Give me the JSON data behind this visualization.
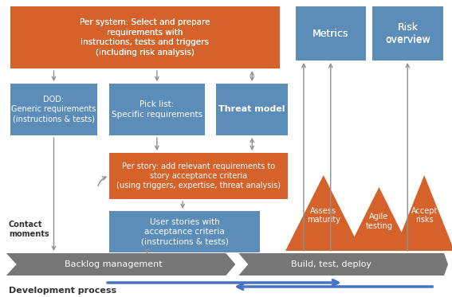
{
  "orange": "#D4622A",
  "blue_dark": "#5B8DB8",
  "blue_light": "#6FA8DC",
  "gray": "#7F7F7F",
  "gray_arrow": "#808080",
  "text_white": "#FFFFFF",
  "text_dark": "#333333",
  "bg": "#FFFFFF",
  "per_system_text": "Per system: Select and prepare\nrequirements with\ninstructions, tests and triggers\n(including risk analysis)",
  "dod_text": "DOD:\nGeneric requirements\n(instructions & tests)",
  "picklist_text": "Pick list:\nSpecific requirements",
  "threat_text": "Threat model",
  "per_story_text": "Per story: add relevant requirements to\nstory acceptance criteria\n(using triggers, expertise, threat analysis)",
  "user_stories_text": "User stories with\nacceptance criteria\n(instructions & tests)",
  "metrics_text": "Metrics",
  "risk_text": "Risk\noverview",
  "assess_text": "Assess\nmaturity",
  "agile_text": "Agile\ntesting",
  "accept_text": "Accept\nrisks",
  "backlog_text": "Backlog management",
  "build_text": "Build, test, deploy",
  "dev_process_text": "Development process",
  "contact_text": "Contact\nmoments"
}
